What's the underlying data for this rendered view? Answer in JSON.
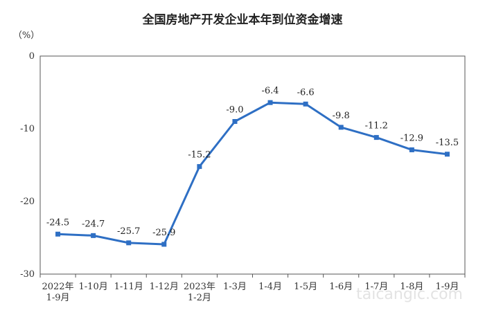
{
  "chart_data": {
    "type": "line",
    "title": "全国房地产开发企业本年到位资金增速",
    "y_unit": "（%）",
    "ylim": [
      -30,
      0
    ],
    "yticks": [
      0,
      -10,
      -20,
      -30
    ],
    "grid": false,
    "categories": [
      [
        "2022年",
        "1-9月"
      ],
      [
        "1-10月"
      ],
      [
        "1-11月"
      ],
      [
        "1-12月"
      ],
      [
        "2023年",
        "1-2月"
      ],
      [
        "1-3月"
      ],
      [
        "1-4月"
      ],
      [
        "1-5月"
      ],
      [
        "1-6月"
      ],
      [
        "1-7月"
      ],
      [
        "1-8月"
      ],
      [
        "1-9月"
      ]
    ],
    "series": [
      {
        "values": [
          -24.5,
          -24.7,
          -25.7,
          -25.9,
          -15.2,
          -9.0,
          -6.4,
          -6.6,
          -9.8,
          -11.2,
          -12.9,
          -13.5
        ],
        "labels": [
          "-24.5",
          "-24.7",
          "-25.7",
          "-25.9",
          "-15.2",
          "-9.0",
          "-6.4",
          "-6.6",
          "-9.8",
          "-11.2",
          "-12.9",
          "-13.5"
        ],
        "color": "#2e6fc4"
      }
    ]
  },
  "watermark": "taicangic.com"
}
